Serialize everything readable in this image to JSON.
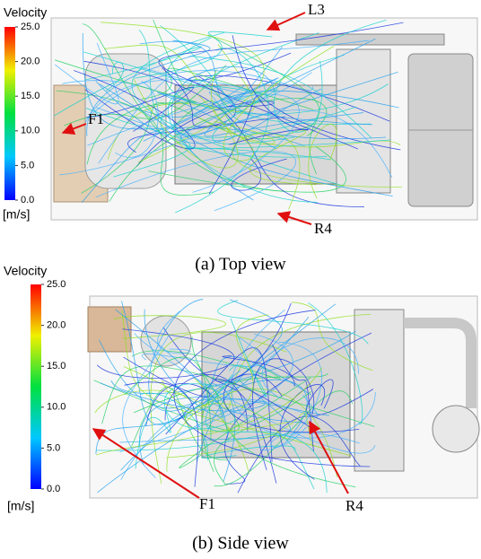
{
  "panels": [
    {
      "colorbar": {
        "title": "Velocity",
        "lim": [
          0,
          25
        ],
        "unit": "[m/s]",
        "ticks": [
          {
            "value": 25,
            "label": "25.0"
          },
          {
            "value": 20,
            "label": "20.0"
          },
          {
            "value": 15,
            "label": "15.0"
          },
          {
            "value": 10,
            "label": "10.0"
          },
          {
            "value": 5,
            "label": "5.0"
          },
          {
            "value": 0,
            "label": "0.0"
          }
        ]
      },
      "annotations": [
        "L3",
        "F1",
        "R4"
      ],
      "caption": "(a)  Top  view"
    },
    {
      "colorbar": {
        "title": "Velocity",
        "lim": [
          0,
          25
        ],
        "unit": "[m/s]",
        "ticks": [
          {
            "value": 25,
            "label": "25.0"
          },
          {
            "value": 20,
            "label": "20.0"
          },
          {
            "value": 15,
            "label": "15.0"
          },
          {
            "value": 10,
            "label": "10.0"
          },
          {
            "value": 5,
            "label": "5.0"
          },
          {
            "value": 0,
            "label": "0.0"
          }
        ]
      },
      "annotations": [
        "F1",
        "R4"
      ],
      "caption": "(b)  Side  view"
    }
  ]
}
